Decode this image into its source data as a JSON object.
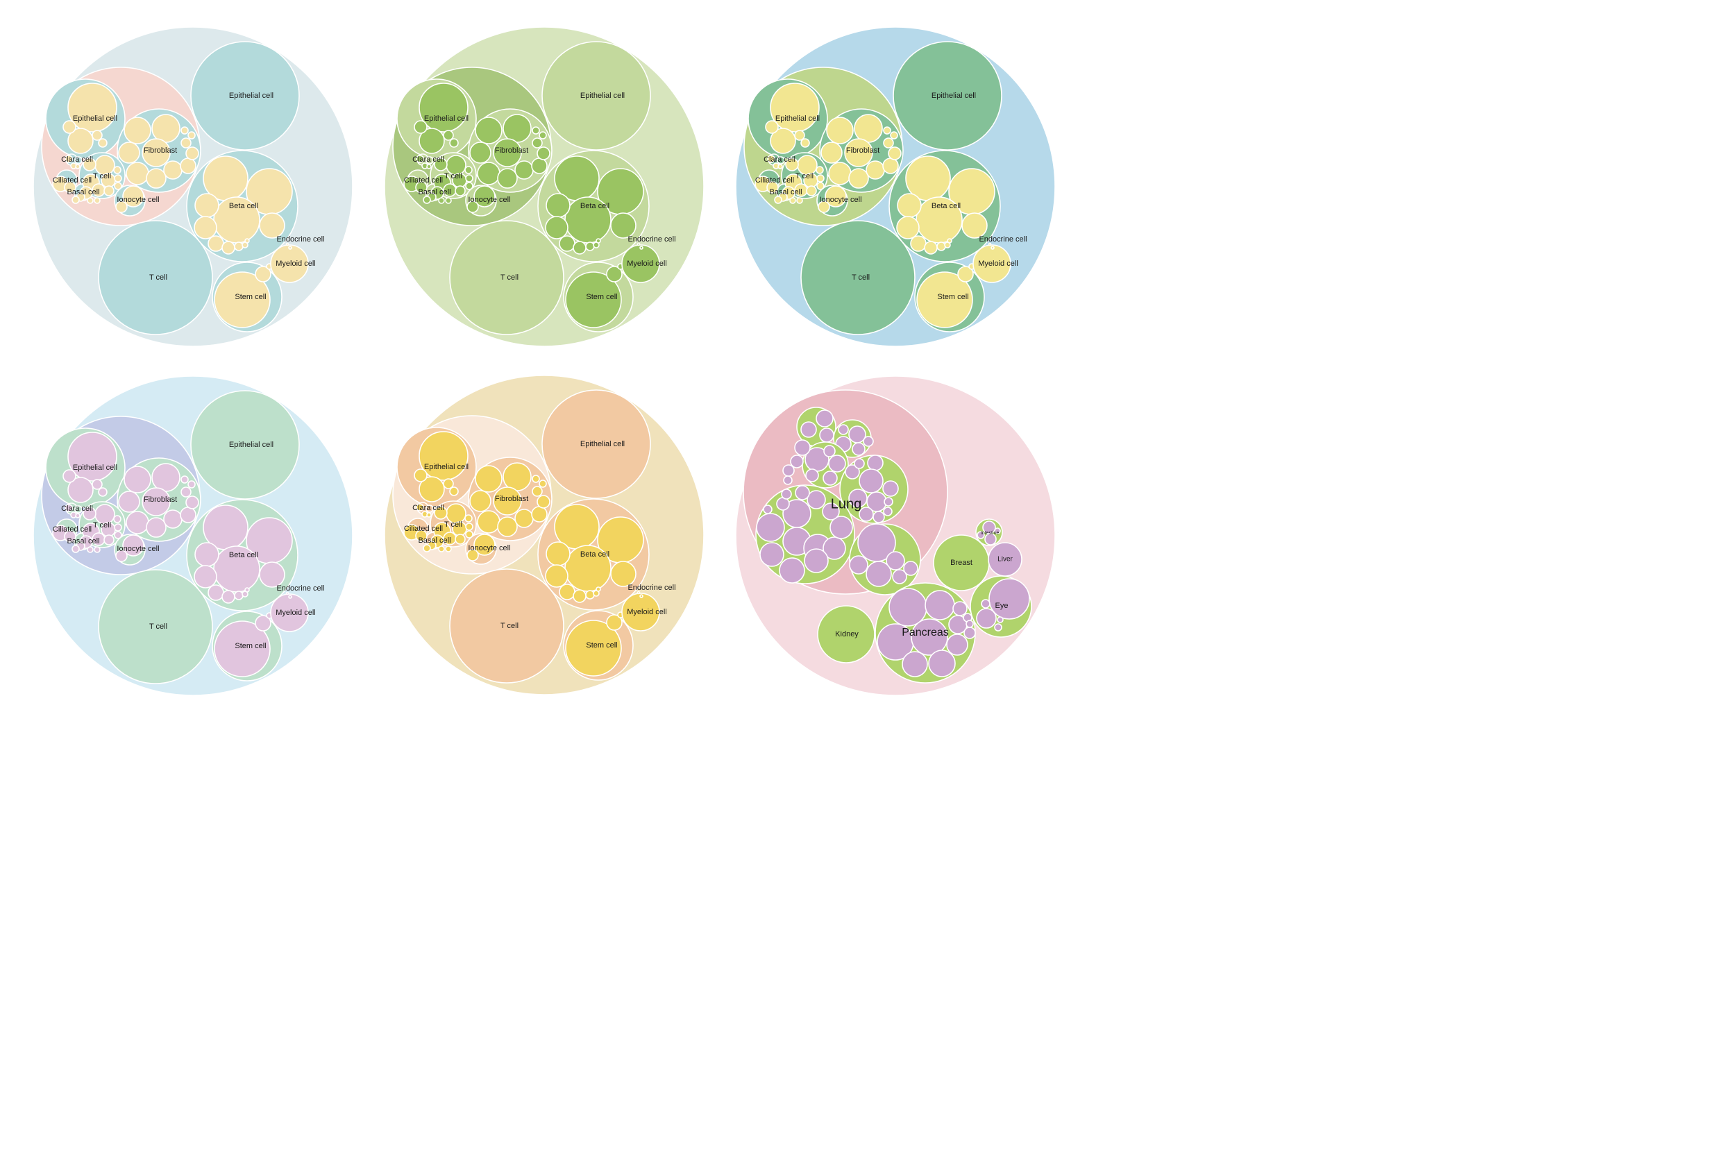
{
  "panels": [
    {
      "id": "panel-blue-yellow",
      "colors": {
        "root": "#dde9ec",
        "organ": "#f5d7d0",
        "type": "#b3dadb",
        "leaf": "#f5e3ac",
        "stroke": "#ffffff"
      },
      "labels": {
        "epithelial_big": "Epithelial cell",
        "t_big": "T cell",
        "beta": "Beta cell",
        "stem": "Stem cell",
        "endocrine": "Endocrine cell",
        "myeloid": "Myeloid cell",
        "epithelial_small": "Epithelial cell",
        "fibroblast": "Fibroblast",
        "clara": "Clara cell",
        "t_small": "T cell",
        "ciliated": "Ciliated cell",
        "basal": "Basal cell",
        "ionocyte": "Ionocyte cell"
      }
    },
    {
      "id": "panel-green",
      "colors": {
        "root": "#d7e5bd",
        "organ": "#a9c77e",
        "type": "#c3d99d",
        "leaf": "#9ac462",
        "stroke": "#ffffff"
      },
      "labels": {
        "epithelial_big": "Epithelial cell",
        "t_big": "T cell",
        "beta": "Beta cell",
        "stem": "Stem cell",
        "endocrine": "Endocrine cell",
        "myeloid": "Myeloid cell",
        "epithelial_small": "Epithelial cell",
        "fibroblast": "Fibroblast",
        "clara": "Clara cell",
        "t_small": "T cell",
        "ciliated": "Ciliated cell",
        "basal": "Basal cell",
        "ionocyte": "Ionocyte cell"
      }
    },
    {
      "id": "panel-skyblue",
      "colors": {
        "root": "#b6d9ea",
        "organ": "#bed68e",
        "type": "#84c198",
        "leaf": "#f2e691",
        "stroke": "#ffffff"
      },
      "labels": {
        "epithelial_big": "Epithelial cell",
        "t_big": "T cell",
        "beta": "Beta cell",
        "stem": "Stem cell",
        "endocrine": "Endocrine cell",
        "myeloid": "Myeloid cell",
        "epithelial_small": "Epithelial cell",
        "fibroblast": "Fibroblast",
        "clara": "Clara cell",
        "t_small": "T cell",
        "ciliated": "Ciliated cell",
        "basal": "Basal cell",
        "ionocyte": "Ionocyte cell"
      }
    },
    {
      "id": "panel-lilac",
      "colors": {
        "root": "#d5ebf4",
        "organ": "#c3cbe7",
        "type": "#bde0cb",
        "leaf": "#e1c5de",
        "stroke": "#ffffff"
      },
      "labels": {
        "epithelial_big": "Epithelial cell",
        "t_big": "T cell",
        "beta": "Beta cell",
        "stem": "Stem cell",
        "endocrine": "Endocrine cell",
        "myeloid": "Myeloid cell",
        "epithelial_small": "Epithelial cell",
        "fibroblast": "Fibroblast",
        "clara": "Clara cell",
        "t_small": "T cell",
        "ciliated": "Ciliated cell",
        "basal": "Basal cell",
        "ionocyte": "Ionocyte cell"
      }
    },
    {
      "id": "panel-orange",
      "colors": {
        "root": "#f0e2bb",
        "organ": "#f9e8d9",
        "type": "#f2c9a2",
        "leaf": "#f2d45f",
        "stroke": "#ffffff"
      },
      "labels": {
        "epithelial_big": "Epithelial cell",
        "t_big": "T cell",
        "beta": "Beta cell",
        "stem": "Stem cell",
        "endocrine": "Endocrine cell",
        "myeloid": "Myeloid cell",
        "epithelial_small": "Epithelial cell",
        "fibroblast": "Fibroblast",
        "clara": "Clara cell",
        "t_small": "T cell",
        "ciliated": "Ciliated cell",
        "basal": "Basal cell",
        "ionocyte": "Ionocyte cell"
      }
    }
  ],
  "organ_panel": {
    "colors": {
      "root": "#f5dbe0",
      "lung": "#ebbbc3",
      "organ": "#b0d36c",
      "leaf": "#cba6cf",
      "stroke": "#ffffff"
    },
    "labels": {
      "lung": "Lung",
      "pancreas": "Pancreas",
      "kidney": "Kidney",
      "breast": "Breast",
      "liver": "Liver",
      "eye": "Eye",
      "intestine": "Intestine"
    }
  }
}
